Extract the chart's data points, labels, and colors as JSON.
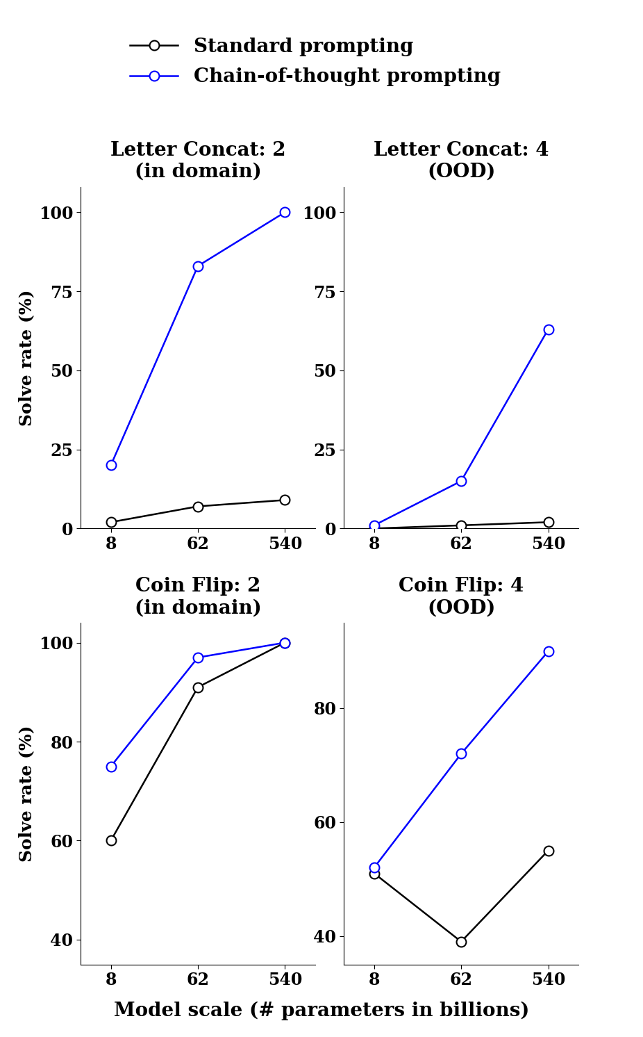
{
  "x_values": [
    8,
    62,
    540
  ],
  "x_label": "Model scale (# parameters in billions)",
  "x_ticks": [
    8,
    62,
    540
  ],
  "subplots": [
    {
      "title": "Letter Concat: 2\n(in domain)",
      "ylabel": "Solve rate (%)",
      "ylim": [
        0,
        108
      ],
      "yticks": [
        0,
        25,
        50,
        75,
        100
      ],
      "standard": [
        2,
        7,
        9
      ],
      "cot": [
        20,
        83,
        100
      ]
    },
    {
      "title": "Letter Concat: 4\n(OOD)",
      "ylabel": "",
      "ylim": [
        0,
        108
      ],
      "yticks": [
        0,
        25,
        50,
        75,
        100
      ],
      "standard": [
        0,
        1,
        2
      ],
      "cot": [
        1,
        15,
        63
      ]
    },
    {
      "title": "Coin Flip: 2\n(in domain)",
      "ylabel": "Solve rate (%)",
      "ylim": [
        35,
        104
      ],
      "yticks": [
        40,
        60,
        80,
        100
      ],
      "standard": [
        60,
        91,
        100
      ],
      "cot": [
        75,
        97,
        100
      ]
    },
    {
      "title": "Coin Flip: 4\n(OOD)",
      "ylabel": "",
      "ylim": [
        35,
        95
      ],
      "yticks": [
        40,
        60,
        80
      ],
      "standard": [
        51,
        39,
        55
      ],
      "cot": [
        52,
        72,
        90
      ]
    }
  ],
  "standard_color": "#000000",
  "cot_color": "#0000FF",
  "standard_label": "Standard prompting",
  "cot_label": "Chain-of-thought prompting",
  "marker": "o",
  "marker_size": 10,
  "linewidth": 1.8,
  "title_fontsize": 20,
  "label_fontsize": 18,
  "tick_fontsize": 17,
  "legend_fontsize": 20,
  "xlabel_fontsize": 20
}
